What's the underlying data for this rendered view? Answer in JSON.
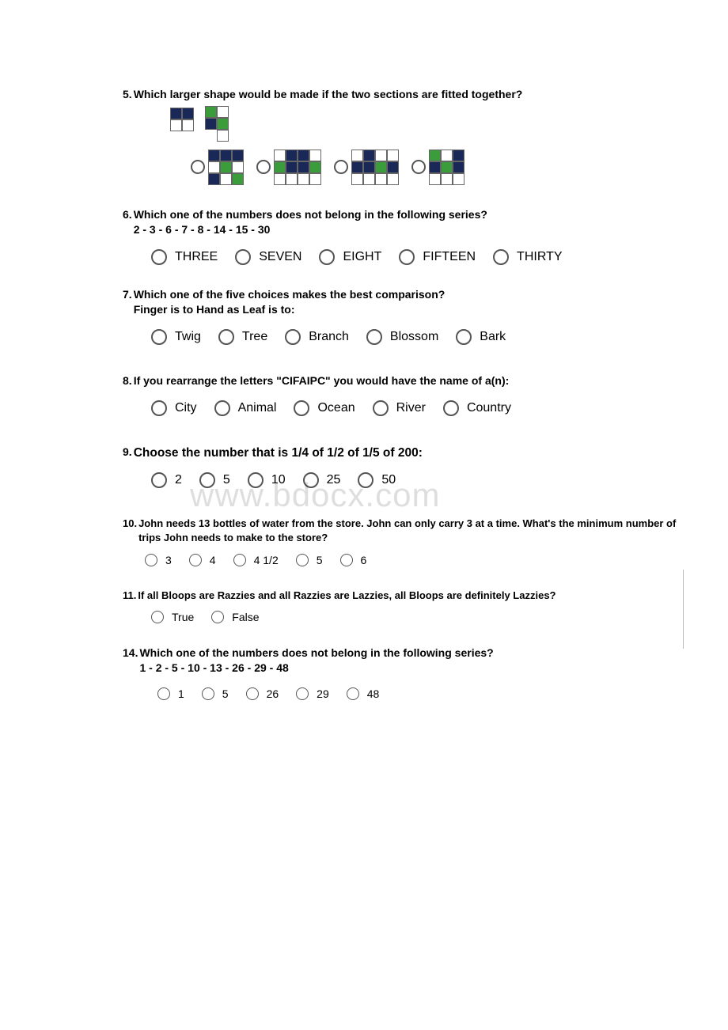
{
  "watermark": "www.bdocx.com",
  "colors": {
    "navy": "#1a2857",
    "green": "#3b9c3b",
    "white": "#ffffff",
    "border": "#666666",
    "radio_border": "#555555",
    "text": "#000000"
  },
  "q5": {
    "num": "5.",
    "text": "Which larger shape would be made if the two sections are fitted together?",
    "piece1": {
      "cols": 2,
      "rows": 2,
      "cells": [
        [
          "navy",
          "navy"
        ],
        [
          "white",
          "white"
        ]
      ]
    },
    "piece2": {
      "cols": 2,
      "rows": 3,
      "cells": [
        [
          "green",
          "white"
        ],
        [
          "navy",
          "green"
        ],
        [
          "none",
          "white"
        ]
      ],
      "extra_offset": true
    },
    "options": [
      {
        "cols": 3,
        "rows": 3,
        "cells": [
          [
            "navy",
            "navy",
            "navy"
          ],
          [
            "white",
            "green",
            "white"
          ],
          [
            "navy",
            "white",
            "green"
          ]
        ]
      },
      {
        "cols": 4,
        "rows": 3,
        "cells": [
          [
            "white",
            "navy",
            "navy",
            "white"
          ],
          [
            "green",
            "navy",
            "navy",
            "green"
          ],
          [
            "white",
            "white",
            "white",
            "white"
          ]
        ]
      },
      {
        "cols": 4,
        "rows": 3,
        "cells": [
          [
            "white",
            "navy",
            "white",
            "white"
          ],
          [
            "navy",
            "navy",
            "green",
            "navy"
          ],
          [
            "white",
            "white",
            "white",
            "white"
          ]
        ]
      },
      {
        "cols": 3,
        "rows": 3,
        "cells": [
          [
            "green",
            "white",
            "navy"
          ],
          [
            "navy",
            "green",
            "navy"
          ],
          [
            "white",
            "white",
            "white"
          ]
        ]
      }
    ]
  },
  "q6": {
    "num": "6.",
    "text": "Which one of the numbers does not belong in the following series?",
    "sub": "2 - 3 - 6 - 7 - 8 - 14 - 15 - 30",
    "options": [
      "THREE",
      "SEVEN",
      "EIGHT",
      "FIFTEEN",
      "THIRTY"
    ]
  },
  "q7": {
    "num": "7.",
    "text": "Which one of the five choices makes the best comparison?",
    "sub": "Finger is to Hand as Leaf is to:",
    "options": [
      "Twig",
      "Tree",
      "Branch",
      "Blossom",
      "Bark"
    ]
  },
  "q8": {
    "num": "8.",
    "text": "If you rearrange the letters \"CIFAIPC\" you would have the name of a(n):",
    "options": [
      "City",
      "Animal",
      "Ocean",
      "River",
      "Country"
    ]
  },
  "q9": {
    "num": "9.",
    "text": "Choose the number that is 1/4 of 1/2 of 1/5 of 200:",
    "options": [
      "2",
      "5",
      "10",
      "25",
      "50"
    ]
  },
  "q10": {
    "num": "10.",
    "text": "John needs 13 bottles of water from the store. John can only carry 3 at a time. What's the minimum number of trips John needs to make to the store?",
    "options": [
      "3",
      "4",
      "4 1/2",
      "5",
      "6"
    ]
  },
  "q11": {
    "num": "11.",
    "text": "If all Bloops are Razzies and all Razzies are Lazzies, all Bloops are definitely Lazzies?",
    "options": [
      "True",
      "False"
    ]
  },
  "q14": {
    "num": "14.",
    "text": "Which one of the numbers does not belong in the following series?",
    "sub": "1 - 2 - 5 - 10 - 13 - 26 - 29 - 48",
    "options": [
      "1",
      "5",
      "26",
      "29",
      "48"
    ]
  }
}
